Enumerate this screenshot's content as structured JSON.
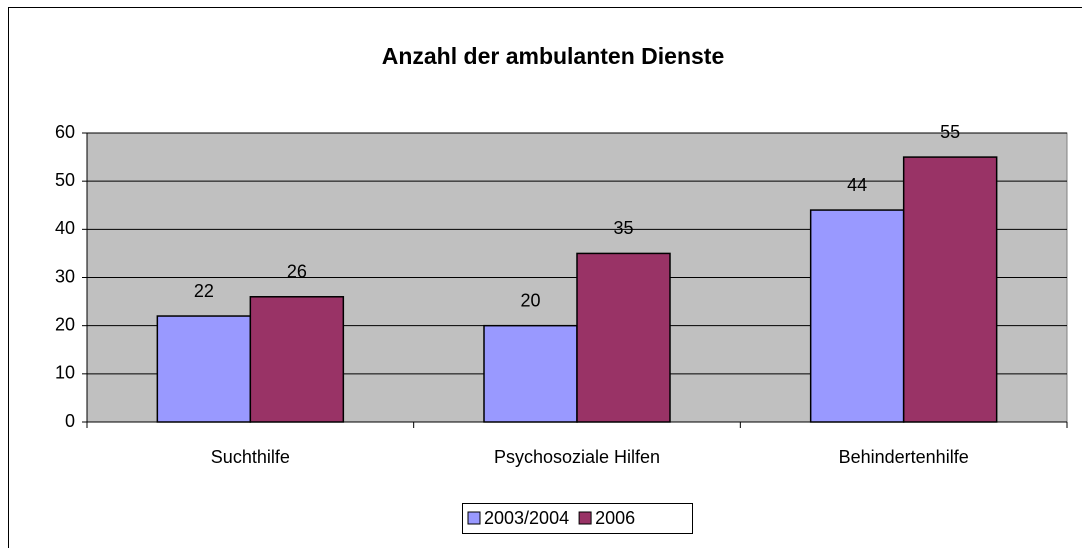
{
  "chart_data": {
    "type": "bar",
    "title": "Anzahl der ambulanten Dienste",
    "categories": [
      "Suchthilfe",
      "Psychosoziale Hilfen",
      "Behindertenhilfe"
    ],
    "series": [
      {
        "name": "2003/2004",
        "color": "#9999ff",
        "values": [
          22,
          20,
          44
        ]
      },
      {
        "name": "2006",
        "color": "#993366",
        "values": [
          26,
          35,
          55
        ]
      }
    ],
    "ylim": [
      0,
      60
    ],
    "yticks": [
      0,
      10,
      20,
      30,
      40,
      50,
      60
    ],
    "grid": true,
    "legend": "bottom"
  }
}
